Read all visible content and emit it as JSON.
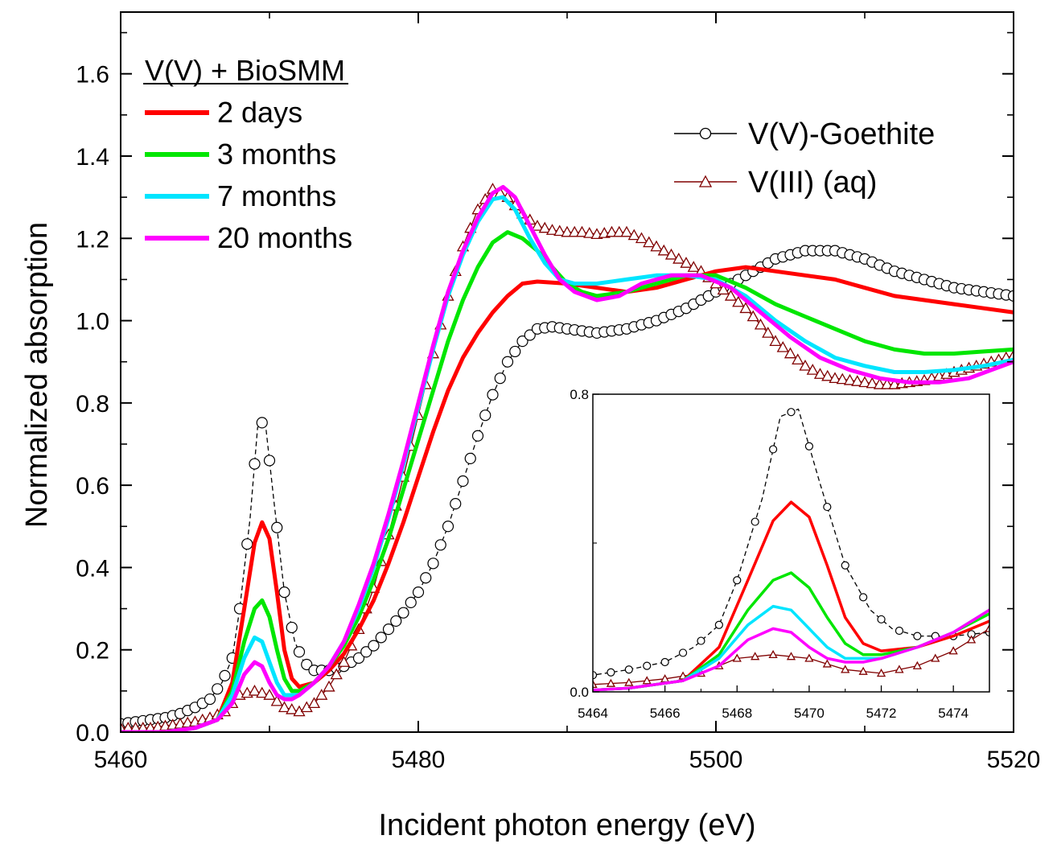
{
  "chart_data": {
    "type": "line",
    "xlabel": "Incident photon energy (eV)",
    "ylabel": "Normalized absorption",
    "xlim": [
      5460,
      5520
    ],
    "ylim": [
      0,
      1.75
    ],
    "x_ticks": [
      5460,
      5480,
      5500,
      5520
    ],
    "y_ticks": [
      0.0,
      0.2,
      0.4,
      0.6,
      0.8,
      1.0,
      1.2,
      1.4,
      1.6
    ],
    "x_tick_labels": [
      "5460",
      "5480",
      "5500",
      "5520"
    ],
    "y_tick_labels": [
      "0.0",
      "0.2",
      "0.4",
      "0.6",
      "0.8",
      "1.0",
      "1.2",
      "1.4",
      "1.6"
    ],
    "legend_title": "V(V) + BioSMM",
    "series": [
      {
        "name": "2 days",
        "color": "#ff0000",
        "style": "line",
        "points": [
          [
            5460,
            0.0
          ],
          [
            5463,
            0.0
          ],
          [
            5465,
            0.01
          ],
          [
            5466.5,
            0.03
          ],
          [
            5467.5,
            0.12
          ],
          [
            5468.3,
            0.3
          ],
          [
            5469,
            0.46
          ],
          [
            5469.5,
            0.51
          ],
          [
            5470,
            0.47
          ],
          [
            5470.5,
            0.34
          ],
          [
            5471,
            0.2
          ],
          [
            5471.5,
            0.13
          ],
          [
            5472,
            0.11
          ],
          [
            5473,
            0.12
          ],
          [
            5474,
            0.15
          ],
          [
            5475,
            0.19
          ],
          [
            5476,
            0.25
          ],
          [
            5477,
            0.32
          ],
          [
            5478,
            0.41
          ],
          [
            5479,
            0.51
          ],
          [
            5480,
            0.62
          ],
          [
            5481,
            0.73
          ],
          [
            5482,
            0.83
          ],
          [
            5483,
            0.91
          ],
          [
            5484,
            0.97
          ],
          [
            5485,
            1.02
          ],
          [
            5486,
            1.06
          ],
          [
            5487,
            1.09
          ],
          [
            5488,
            1.095
          ],
          [
            5490,
            1.09
          ],
          [
            5492,
            1.08
          ],
          [
            5494,
            1.07
          ],
          [
            5496,
            1.08
          ],
          [
            5498,
            1.1
          ],
          [
            5500,
            1.12
          ],
          [
            5502,
            1.13
          ],
          [
            5504,
            1.12
          ],
          [
            5506,
            1.11
          ],
          [
            5508,
            1.1
          ],
          [
            5510,
            1.08
          ],
          [
            5512,
            1.06
          ],
          [
            5514,
            1.05
          ],
          [
            5516,
            1.04
          ],
          [
            5518,
            1.03
          ],
          [
            5520,
            1.02
          ]
        ]
      },
      {
        "name": "3 months",
        "color": "#00e600",
        "style": "line",
        "points": [
          [
            5460,
            0.0
          ],
          [
            5463,
            0.0
          ],
          [
            5465,
            0.01
          ],
          [
            5466.5,
            0.03
          ],
          [
            5467.5,
            0.1
          ],
          [
            5468.3,
            0.22
          ],
          [
            5469,
            0.3
          ],
          [
            5469.5,
            0.32
          ],
          [
            5470,
            0.28
          ],
          [
            5470.5,
            0.2
          ],
          [
            5471,
            0.13
          ],
          [
            5471.5,
            0.1
          ],
          [
            5472,
            0.1
          ],
          [
            5473,
            0.12
          ],
          [
            5474,
            0.16
          ],
          [
            5475,
            0.21
          ],
          [
            5476,
            0.28
          ],
          [
            5477,
            0.37
          ],
          [
            5478,
            0.47
          ],
          [
            5479,
            0.59
          ],
          [
            5480,
            0.71
          ],
          [
            5481,
            0.83
          ],
          [
            5482,
            0.95
          ],
          [
            5483,
            1.05
          ],
          [
            5484,
            1.13
          ],
          [
            5485,
            1.19
          ],
          [
            5486,
            1.215
          ],
          [
            5487,
            1.2
          ],
          [
            5488,
            1.17
          ],
          [
            5489,
            1.13
          ],
          [
            5490,
            1.09
          ],
          [
            5491,
            1.07
          ],
          [
            5492,
            1.06
          ],
          [
            5494,
            1.07
          ],
          [
            5496,
            1.09
          ],
          [
            5498,
            1.11
          ],
          [
            5500,
            1.11
          ],
          [
            5502,
            1.08
          ],
          [
            5504,
            1.04
          ],
          [
            5506,
            1.01
          ],
          [
            5508,
            0.98
          ],
          [
            5510,
            0.95
          ],
          [
            5512,
            0.93
          ],
          [
            5514,
            0.92
          ],
          [
            5516,
            0.92
          ],
          [
            5518,
            0.925
          ],
          [
            5520,
            0.93
          ]
        ]
      },
      {
        "name": "7 months",
        "color": "#00e5ff",
        "style": "line",
        "points": [
          [
            5460,
            0.0
          ],
          [
            5463,
            0.0
          ],
          [
            5465,
            0.01
          ],
          [
            5466.5,
            0.03
          ],
          [
            5467.5,
            0.09
          ],
          [
            5468.3,
            0.18
          ],
          [
            5469,
            0.23
          ],
          [
            5469.5,
            0.22
          ],
          [
            5470,
            0.17
          ],
          [
            5470.5,
            0.12
          ],
          [
            5471,
            0.09
          ],
          [
            5471.5,
            0.09
          ],
          [
            5472,
            0.09
          ],
          [
            5473,
            0.12
          ],
          [
            5474,
            0.16
          ],
          [
            5475,
            0.22
          ],
          [
            5476,
            0.3
          ],
          [
            5477,
            0.4
          ],
          [
            5478,
            0.52
          ],
          [
            5479,
            0.65
          ],
          [
            5480,
            0.79
          ],
          [
            5481,
            0.93
          ],
          [
            5482,
            1.06
          ],
          [
            5483,
            1.16
          ],
          [
            5484,
            1.24
          ],
          [
            5485,
            1.295
          ],
          [
            5485.7,
            1.3
          ],
          [
            5486.5,
            1.27
          ],
          [
            5487.5,
            1.2
          ],
          [
            5488.5,
            1.14
          ],
          [
            5489.5,
            1.1
          ],
          [
            5490.5,
            1.09
          ],
          [
            5492,
            1.09
          ],
          [
            5494,
            1.1
          ],
          [
            5496,
            1.11
          ],
          [
            5498,
            1.11
          ],
          [
            5500,
            1.1
          ],
          [
            5502,
            1.06
          ],
          [
            5504,
            1.0
          ],
          [
            5506,
            0.95
          ],
          [
            5508,
            0.91
          ],
          [
            5510,
            0.89
          ],
          [
            5512,
            0.875
          ],
          [
            5514,
            0.875
          ],
          [
            5516,
            0.88
          ],
          [
            5518,
            0.89
          ],
          [
            5520,
            0.905
          ]
        ]
      },
      {
        "name": "20 months",
        "color": "#ff00ff",
        "style": "line",
        "points": [
          [
            5460,
            0.0
          ],
          [
            5463,
            0.0
          ],
          [
            5465,
            0.01
          ],
          [
            5466.5,
            0.03
          ],
          [
            5467.5,
            0.07
          ],
          [
            5468.3,
            0.14
          ],
          [
            5469,
            0.17
          ],
          [
            5469.5,
            0.16
          ],
          [
            5470,
            0.12
          ],
          [
            5470.5,
            0.09
          ],
          [
            5471,
            0.08
          ],
          [
            5471.5,
            0.08
          ],
          [
            5472,
            0.09
          ],
          [
            5473,
            0.12
          ],
          [
            5474,
            0.16
          ],
          [
            5475,
            0.22
          ],
          [
            5476,
            0.31
          ],
          [
            5477,
            0.41
          ],
          [
            5478,
            0.53
          ],
          [
            5479,
            0.66
          ],
          [
            5480,
            0.8
          ],
          [
            5481,
            0.94
          ],
          [
            5482,
            1.07
          ],
          [
            5483,
            1.17
          ],
          [
            5484,
            1.25
          ],
          [
            5485,
            1.31
          ],
          [
            5485.7,
            1.325
          ],
          [
            5486.5,
            1.3
          ],
          [
            5487.5,
            1.23
          ],
          [
            5488.5,
            1.16
          ],
          [
            5489.5,
            1.1
          ],
          [
            5490.5,
            1.07
          ],
          [
            5492,
            1.05
          ],
          [
            5493.5,
            1.06
          ],
          [
            5495,
            1.09
          ],
          [
            5497,
            1.11
          ],
          [
            5499,
            1.11
          ],
          [
            5501,
            1.08
          ],
          [
            5503,
            1.02
          ],
          [
            5505,
            0.96
          ],
          [
            5507,
            0.91
          ],
          [
            5509,
            0.88
          ],
          [
            5511,
            0.86
          ],
          [
            5513,
            0.85
          ],
          [
            5515,
            0.85
          ],
          [
            5517,
            0.86
          ],
          [
            5518.5,
            0.88
          ],
          [
            5520,
            0.9
          ]
        ]
      },
      {
        "name": "V(V)-Goethite",
        "color": "#000000",
        "style": "marker-circle",
        "points": [
          [
            5460,
            0.02
          ],
          [
            5461,
            0.025
          ],
          [
            5462,
            0.03
          ],
          [
            5463,
            0.035
          ],
          [
            5464,
            0.045
          ],
          [
            5465,
            0.06
          ],
          [
            5466,
            0.08
          ],
          [
            5466.8,
            0.12
          ],
          [
            5467.5,
            0.18
          ],
          [
            5468,
            0.3
          ],
          [
            5468.7,
            0.52
          ],
          [
            5469.2,
            0.74
          ],
          [
            5469.7,
            0.76
          ],
          [
            5470.3,
            0.56
          ],
          [
            5471,
            0.34
          ],
          [
            5471.7,
            0.22
          ],
          [
            5472.3,
            0.17
          ],
          [
            5473,
            0.15
          ],
          [
            5474,
            0.15
          ],
          [
            5475,
            0.16
          ],
          [
            5476,
            0.18
          ],
          [
            5477,
            0.21
          ],
          [
            5478,
            0.25
          ],
          [
            5479,
            0.29
          ],
          [
            5480,
            0.34
          ],
          [
            5481,
            0.41
          ],
          [
            5482,
            0.5
          ],
          [
            5483,
            0.61
          ],
          [
            5484,
            0.72
          ],
          [
            5485,
            0.82
          ],
          [
            5486,
            0.9
          ],
          [
            5487,
            0.95
          ],
          [
            5488,
            0.98
          ],
          [
            5489,
            0.985
          ],
          [
            5490,
            0.98
          ],
          [
            5492,
            0.97
          ],
          [
            5494,
            0.98
          ],
          [
            5496,
            1.0
          ],
          [
            5498,
            1.03
          ],
          [
            5500,
            1.07
          ],
          [
            5502,
            1.11
          ],
          [
            5504,
            1.15
          ],
          [
            5506,
            1.17
          ],
          [
            5508,
            1.17
          ],
          [
            5510,
            1.15
          ],
          [
            5512,
            1.12
          ],
          [
            5514,
            1.1
          ],
          [
            5516,
            1.08
          ],
          [
            5518,
            1.07
          ],
          [
            5520,
            1.06
          ]
        ]
      },
      {
        "name": "V(III) (aq)",
        "color": "#800000",
        "style": "marker-triangle",
        "points": [
          [
            5460,
            0.01
          ],
          [
            5461,
            0.01
          ],
          [
            5462,
            0.01
          ],
          [
            5463,
            0.015
          ],
          [
            5464,
            0.02
          ],
          [
            5465,
            0.025
          ],
          [
            5466,
            0.035
          ],
          [
            5467,
            0.05
          ],
          [
            5468,
            0.09
          ],
          [
            5469,
            0.1
          ],
          [
            5470,
            0.09
          ],
          [
            5471,
            0.06
          ],
          [
            5472,
            0.05
          ],
          [
            5473,
            0.07
          ],
          [
            5474,
            0.11
          ],
          [
            5475,
            0.17
          ],
          [
            5476,
            0.25
          ],
          [
            5477,
            0.35
          ],
          [
            5478,
            0.48
          ],
          [
            5479,
            0.62
          ],
          [
            5480,
            0.77
          ],
          [
            5481,
            0.92
          ],
          [
            5482,
            1.06
          ],
          [
            5483,
            1.18
          ],
          [
            5484,
            1.27
          ],
          [
            5485,
            1.32
          ],
          [
            5486,
            1.3
          ],
          [
            5487,
            1.26
          ],
          [
            5488,
            1.23
          ],
          [
            5489,
            1.22
          ],
          [
            5490,
            1.215
          ],
          [
            5491,
            1.215
          ],
          [
            5492,
            1.21
          ],
          [
            5493,
            1.215
          ],
          [
            5494,
            1.215
          ],
          [
            5495,
            1.2
          ],
          [
            5496,
            1.18
          ],
          [
            5497,
            1.16
          ],
          [
            5498,
            1.14
          ],
          [
            5499,
            1.12
          ],
          [
            5500,
            1.09
          ],
          [
            5501,
            1.06
          ],
          [
            5502,
            1.03
          ],
          [
            5503,
            0.99
          ],
          [
            5504,
            0.95
          ],
          [
            5505,
            0.92
          ],
          [
            5506,
            0.89
          ],
          [
            5507,
            0.87
          ],
          [
            5508,
            0.86
          ],
          [
            5509,
            0.855
          ],
          [
            5510,
            0.85
          ],
          [
            5511,
            0.845
          ],
          [
            5512,
            0.845
          ],
          [
            5513,
            0.85
          ],
          [
            5514,
            0.855
          ],
          [
            5515,
            0.865
          ],
          [
            5516,
            0.875
          ],
          [
            5517,
            0.885
          ],
          [
            5518,
            0.895
          ],
          [
            5519,
            0.905
          ],
          [
            5520,
            0.915
          ]
        ]
      }
    ],
    "inset": {
      "xlim": [
        5464,
        5475
      ],
      "ylim": [
        0,
        0.8
      ],
      "x_ticks": [
        5464,
        5466,
        5468,
        5470,
        5472,
        5474
      ],
      "x_tick_labels": [
        "5464",
        "5466",
        "5468",
        "5470",
        "5472",
        "5474"
      ],
      "y_ticks": [
        0.0,
        0.8
      ],
      "y_tick_labels": [
        "0.0",
        "0.8"
      ]
    }
  }
}
